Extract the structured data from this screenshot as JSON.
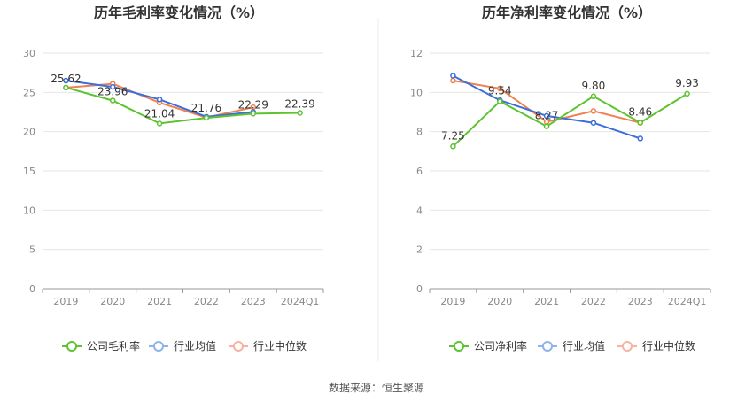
{
  "source_note": "数据来源：恒生聚源",
  "colors": {
    "company": "#5cc42f",
    "industry_avg": "#3c6fd8",
    "industry_median": "#f0804f",
    "legend_company": "#5cc42f",
    "legend_avg": "#8fb3ea",
    "legend_median": "#f6b3a2",
    "axis_text": "#888888",
    "grid": "#e6e6e6",
    "divider": "#eeeeee"
  },
  "chart_data": [
    {
      "type": "line",
      "title": "历年毛利率变化情况（%）",
      "categories": [
        "2019",
        "2020",
        "2021",
        "2022",
        "2023",
        "2024Q1"
      ],
      "yticks": [
        "0",
        "5",
        "10",
        "15",
        "20",
        "25",
        "30"
      ],
      "ylim": [
        0,
        30
      ],
      "grid": true,
      "legend_position": "bottom",
      "series": [
        {
          "name": "公司毛利率",
          "role": "company",
          "values": [
            25.62,
            23.96,
            21.04,
            21.76,
            22.29,
            22.39
          ],
          "labels": [
            "25.62",
            "23.96",
            "21.04",
            "21.76",
            "22.29",
            "22.39"
          ]
        },
        {
          "name": "行业均值",
          "role": "industry_avg",
          "values": [
            26.5,
            25.7,
            24.1,
            21.9,
            22.5,
            null
          ],
          "labels": []
        },
        {
          "name": "行业中位数",
          "role": "industry_median",
          "values": [
            25.6,
            26.1,
            23.7,
            21.8,
            23.1,
            null
          ],
          "labels": []
        }
      ]
    },
    {
      "type": "line",
      "title": "历年净利率变化情况（%）",
      "categories": [
        "2019",
        "2020",
        "2021",
        "2022",
        "2023",
        "2024Q1"
      ],
      "yticks": [
        "0",
        "2",
        "4",
        "6",
        "8",
        "10",
        "12"
      ],
      "ylim": [
        0,
        12
      ],
      "grid": true,
      "legend_position": "bottom",
      "series": [
        {
          "name": "公司净利率",
          "role": "company",
          "values": [
            7.25,
            9.54,
            8.27,
            9.8,
            8.46,
            9.93
          ],
          "labels": [
            "7.25",
            "9.54",
            "8.27",
            "9.80",
            "8.46",
            "9.93"
          ]
        },
        {
          "name": "行业均值",
          "role": "industry_avg",
          "values": [
            10.85,
            9.6,
            8.8,
            8.45,
            7.65,
            null
          ],
          "labels": []
        },
        {
          "name": "行业中位数",
          "role": "industry_median",
          "values": [
            10.6,
            10.2,
            8.5,
            9.05,
            8.45,
            null
          ],
          "labels": []
        }
      ]
    }
  ]
}
